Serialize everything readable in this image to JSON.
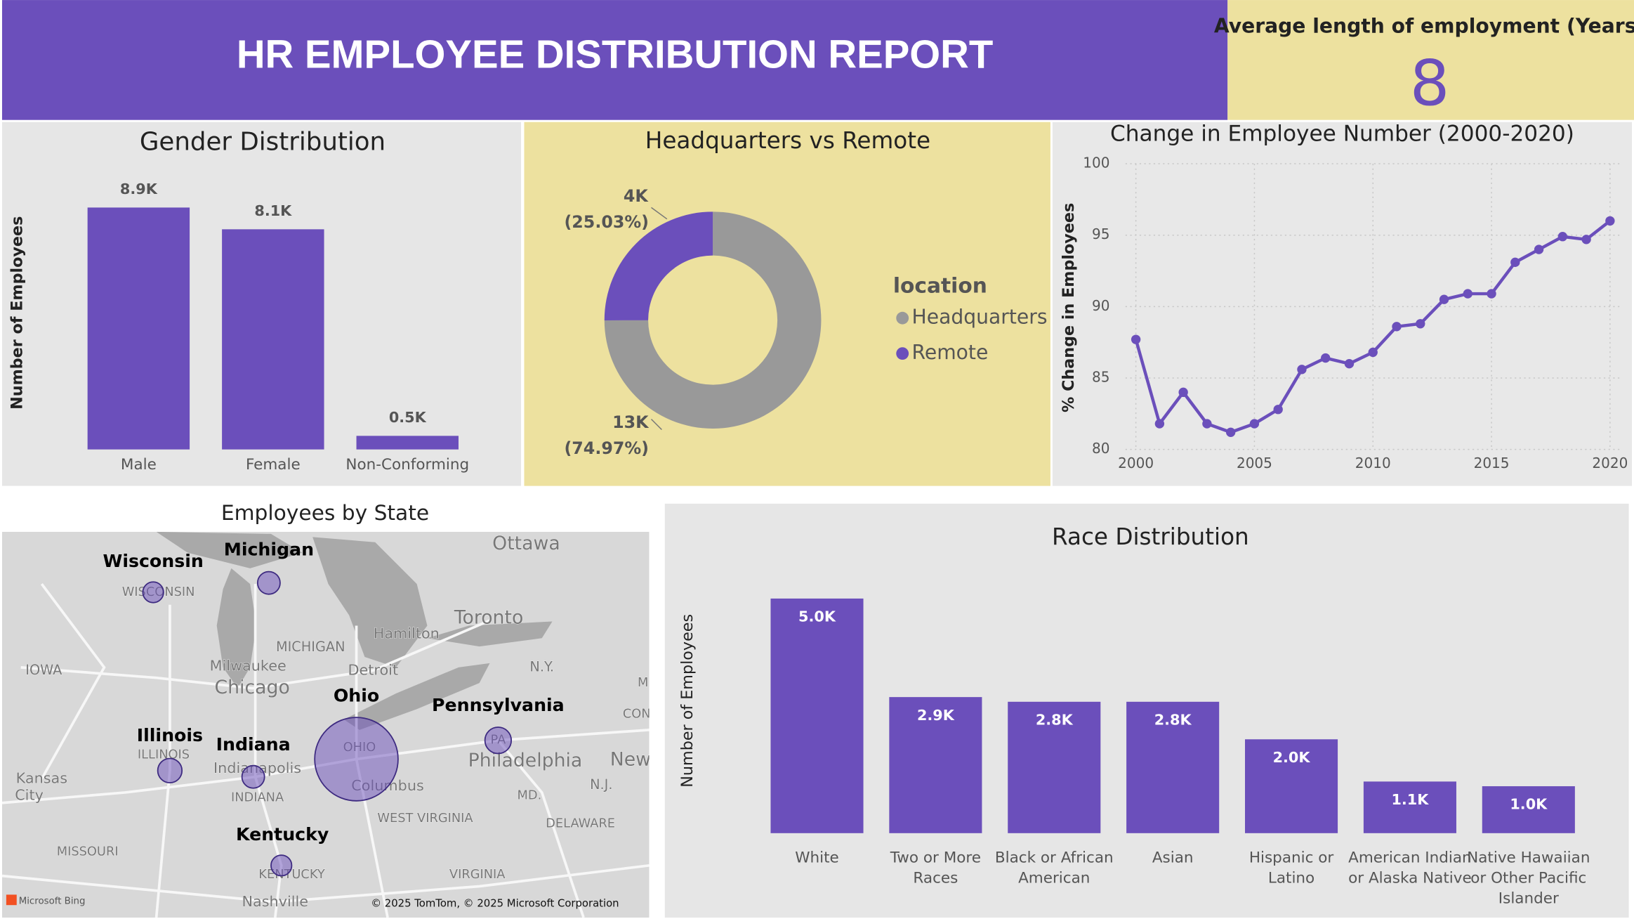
{
  "header": {
    "title": "HR EMPLOYEE DISTRIBUTION REPORT"
  },
  "kpi": {
    "label": "Average length of employment (Years)",
    "value": 8
  },
  "chart_data": [
    {
      "type": "bar",
      "title": "Gender Distribution",
      "y_label": "Number of Employees",
      "categories": [
        [
          "Male"
        ],
        [
          "Female"
        ],
        [
          "Non-Conforming"
        ]
      ],
      "values": [
        8.9,
        8.1,
        0.5
      ],
      "value_labels": [
        "8.9K",
        "8.1K",
        "0.5K"
      ],
      "color": "#6b4fbb",
      "ylim": [
        0,
        9
      ]
    },
    {
      "type": "donut",
      "title": "Headquarters vs Remote",
      "legend_title": "location",
      "categories": [
        "Headquarters",
        "Remote"
      ],
      "values": [
        13,
        4
      ],
      "value_labels": [
        "13K",
        "4K"
      ],
      "percents": [
        74.97,
        25.03
      ],
      "percent_labels": [
        "(74.97%)",
        "(25.03%)"
      ],
      "colors": [
        "#999999",
        "#6b4fbb"
      ]
    },
    {
      "type": "line",
      "title": "Change in Employee Number (2000-2020)",
      "y_label": "% Change in Employees",
      "x": [
        2000,
        2001,
        2002,
        2003,
        2004,
        2005,
        2006,
        2007,
        2008,
        2009,
        2010,
        2011,
        2012,
        2013,
        2014,
        2015,
        2016,
        2017,
        2018,
        2019,
        2020
      ],
      "values": [
        87.7,
        81.8,
        84.0,
        81.8,
        81.2,
        81.8,
        82.8,
        85.6,
        86.4,
        86.0,
        86.8,
        88.6,
        88.8,
        90.5,
        90.9,
        90.9,
        93.1,
        94.0,
        94.9,
        94.7,
        96.0
      ],
      "color": "#6b4fbb",
      "xlim": [
        2000,
        2020
      ],
      "ylim": [
        80,
        100
      ],
      "xticks": [
        2000,
        2005,
        2010,
        2015,
        2020
      ],
      "yticks": [
        80,
        85,
        90,
        95,
        100
      ],
      "grid": true
    },
    {
      "type": "bar",
      "title": "Race Distribution",
      "y_label": "Number of Employees",
      "categories": [
        [
          "White"
        ],
        [
          "Two or More",
          "Races"
        ],
        [
          "Black or African",
          "American"
        ],
        [
          "Asian"
        ],
        [
          "Hispanic or",
          "Latino"
        ],
        [
          "American Indian",
          "or Alaska Native"
        ],
        [
          "Native Hawaiian",
          "or Other Pacific",
          "Islander"
        ]
      ],
      "values": [
        5.0,
        2.9,
        2.8,
        2.8,
        2.0,
        1.1,
        1.0
      ],
      "value_labels": [
        "5.0K",
        "2.9K",
        "2.8K",
        "2.8K",
        "2.0K",
        "1.1K",
        "1.0K"
      ],
      "color": "#6b4fbb",
      "ylim": [
        0,
        5.5
      ]
    }
  ],
  "map": {
    "title": "Employees by State",
    "color": "#6b4fbb",
    "states": [
      {
        "name": "Wisconsin",
        "value": 800
      },
      {
        "name": "Michigan",
        "value": 950
      },
      {
        "name": "Ohio",
        "value": 13000
      },
      {
        "name": "Pennsylvania",
        "value": 1300
      },
      {
        "name": "Illinois",
        "value": 1100
      },
      {
        "name": "Indiana",
        "value": 950
      },
      {
        "name": "Kentucky",
        "value": 800
      }
    ],
    "place_labels": [
      "Ottawa",
      "Toronto",
      "Hamilton",
      "MICHIGAN",
      "Milwaukee",
      "Chicago",
      "Detroit",
      "IOWA",
      "N.Y.",
      "WISCONSIN",
      "OHIO",
      "Indianapolis",
      "INDIANA",
      "ILLINOIS",
      "Kansas",
      "City",
      "Columbus",
      "Philadelphia",
      "New",
      "N.J.",
      "MD.",
      "WEST VIRGINIA",
      "DELAWARE",
      "MISSOURI",
      "KENTUCKY",
      "VIRGINIA",
      "Nashville",
      "PA",
      "CON",
      "M"
    ],
    "attribution": [
      "Microsoft Bing",
      "© 2025 TomTom, © 2025 Microsoft Corporation"
    ]
  }
}
